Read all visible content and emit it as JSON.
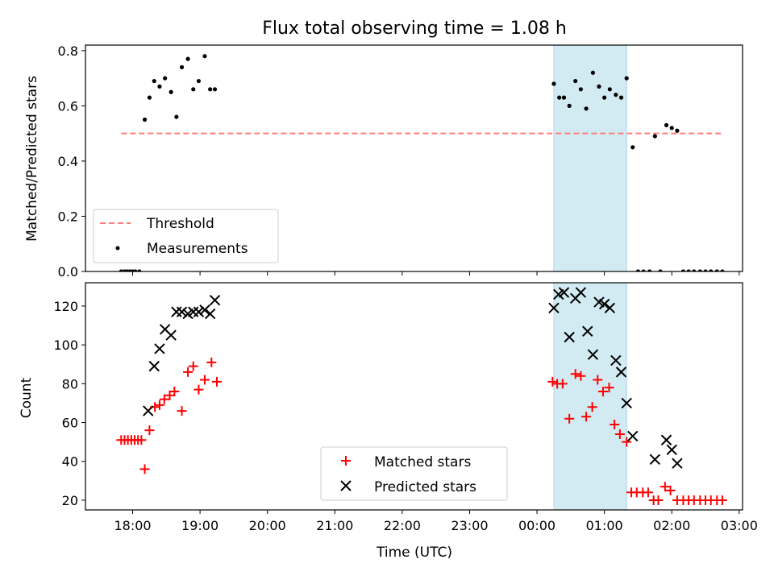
{
  "chart_data": [
    {
      "type": "scatter",
      "title": "Flux total observing time = 1.08 h",
      "xlabel": "",
      "ylabel": "Matched/Predicted stars",
      "xlim": [
        -0.7,
        9.05
      ],
      "ylim": [
        0,
        0.82
      ],
      "x_unit": "hours since 18:00 UTC",
      "x_ticks": [
        0,
        1,
        2,
        3,
        4,
        5,
        6,
        7,
        8,
        9
      ],
      "y_ticks": [
        0.0,
        0.2,
        0.4,
        0.6,
        0.8
      ],
      "y_tick_labels": [
        "0.0",
        "0.2",
        "0.4",
        "0.6",
        "0.8"
      ],
      "shaded_interval": {
        "x0": 6.25,
        "x1": 7.33,
        "color": "#add8e6"
      },
      "legend_position": "lower-left",
      "series": [
        {
          "name": "Threshold",
          "style": "dashed-line",
          "color": "#ff7b7b",
          "x": [
            -0.17,
            8.75
          ],
          "y": [
            0.5,
            0.5
          ]
        },
        {
          "name": "Measurements",
          "style": "dot",
          "color": "#000000",
          "x": [
            -0.17,
            -0.12,
            -0.08,
            -0.04,
            0.0,
            0.04,
            0.1,
            0.18,
            0.25,
            0.32,
            0.4,
            0.48,
            0.57,
            0.65,
            0.73,
            0.82,
            0.9,
            0.98,
            1.07,
            1.15,
            1.22,
            6.25,
            6.33,
            6.4,
            6.48,
            6.57,
            6.65,
            6.73,
            6.83,
            6.92,
            7.0,
            7.08,
            7.17,
            7.25,
            7.33,
            7.42,
            7.5,
            7.58,
            7.67,
            7.75,
            7.83,
            7.92,
            8.0,
            8.08,
            8.17,
            8.25,
            8.33,
            8.42,
            8.5,
            8.58,
            8.67,
            8.75
          ],
          "y": [
            0.0,
            0.0,
            0.0,
            0.0,
            0.0,
            0.0,
            0.0,
            0.55,
            0.63,
            0.69,
            0.67,
            0.7,
            0.65,
            0.56,
            0.74,
            0.77,
            0.66,
            0.69,
            0.78,
            0.66,
            0.66,
            0.68,
            0.63,
            0.63,
            0.6,
            0.69,
            0.66,
            0.59,
            0.72,
            0.67,
            0.63,
            0.66,
            0.64,
            0.63,
            0.7,
            0.45,
            0.0,
            0.0,
            0.0,
            0.49,
            0.0,
            0.53,
            0.52,
            0.51,
            0.0,
            0.0,
            0.0,
            0.0,
            0.0,
            0.0,
            0.0,
            0.0
          ]
        }
      ]
    },
    {
      "type": "scatter",
      "title": "",
      "xlabel": "Time (UTC)",
      "ylabel": "Count",
      "xlim": [
        -0.7,
        9.05
      ],
      "ylim": [
        15,
        132
      ],
      "x_unit": "hours since 18:00 UTC",
      "x_ticks": [
        0,
        1,
        2,
        3,
        4,
        5,
        6,
        7,
        8,
        9
      ],
      "x_tick_labels": [
        "18:00",
        "19:00",
        "20:00",
        "21:00",
        "22:00",
        "23:00",
        "00:00",
        "01:00",
        "02:00",
        "03:00"
      ],
      "y_ticks": [
        20,
        40,
        60,
        80,
        100,
        120
      ],
      "y_tick_labels": [
        "20",
        "40",
        "60",
        "80",
        "100",
        "120"
      ],
      "shaded_interval": {
        "x0": 6.25,
        "x1": 7.33,
        "color": "#add8e6"
      },
      "legend_position": "lower-center",
      "series": [
        {
          "name": "Matched stars",
          "style": "plus",
          "color": "#ff0000",
          "x": [
            -0.17,
            -0.12,
            -0.07,
            -0.02,
            0.03,
            0.08,
            0.13,
            0.18,
            0.25,
            0.33,
            0.4,
            0.47,
            0.55,
            0.62,
            0.73,
            0.82,
            0.9,
            0.98,
            1.07,
            1.17,
            1.25,
            6.23,
            6.3,
            6.38,
            6.48,
            6.57,
            6.65,
            6.73,
            6.82,
            6.9,
            6.98,
            7.07,
            7.15,
            7.23,
            7.33,
            7.4,
            7.48,
            7.57,
            7.65,
            7.73,
            7.8,
            7.9,
            7.98,
            8.08,
            8.17,
            8.25,
            8.33,
            8.42,
            8.5,
            8.58,
            8.67,
            8.75
          ],
          "y": [
            51,
            51,
            51,
            51,
            51,
            51,
            51,
            36,
            56,
            68,
            69,
            72,
            74,
            76,
            66,
            86,
            89,
            77,
            82,
            91,
            81,
            81,
            80,
            80,
            62,
            85,
            84,
            63,
            68,
            82,
            76,
            78,
            59,
            54,
            50,
            24,
            24,
            24,
            24,
            20,
            20,
            27,
            25,
            20,
            20,
            20,
            20,
            20,
            20,
            20,
            20,
            20
          ]
        },
        {
          "name": "Predicted stars",
          "style": "cross",
          "color": "#000000",
          "x": [
            0.23,
            0.32,
            0.4,
            0.48,
            0.57,
            0.65,
            0.73,
            0.82,
            0.9,
            0.98,
            1.07,
            1.15,
            1.22,
            6.25,
            6.32,
            6.4,
            6.48,
            6.57,
            6.65,
            6.75,
            6.83,
            6.92,
            7.0,
            7.08,
            7.17,
            7.25,
            7.33,
            7.42,
            7.75,
            7.92,
            8.0,
            8.08
          ],
          "y": [
            66,
            89,
            98,
            108,
            105,
            117,
            117,
            116,
            117,
            117,
            118,
            116,
            123,
            119,
            126,
            127,
            104,
            124,
            127,
            107,
            95,
            122,
            121,
            119,
            92,
            86,
            70,
            53,
            41,
            51,
            46,
            39
          ]
        }
      ]
    }
  ]
}
